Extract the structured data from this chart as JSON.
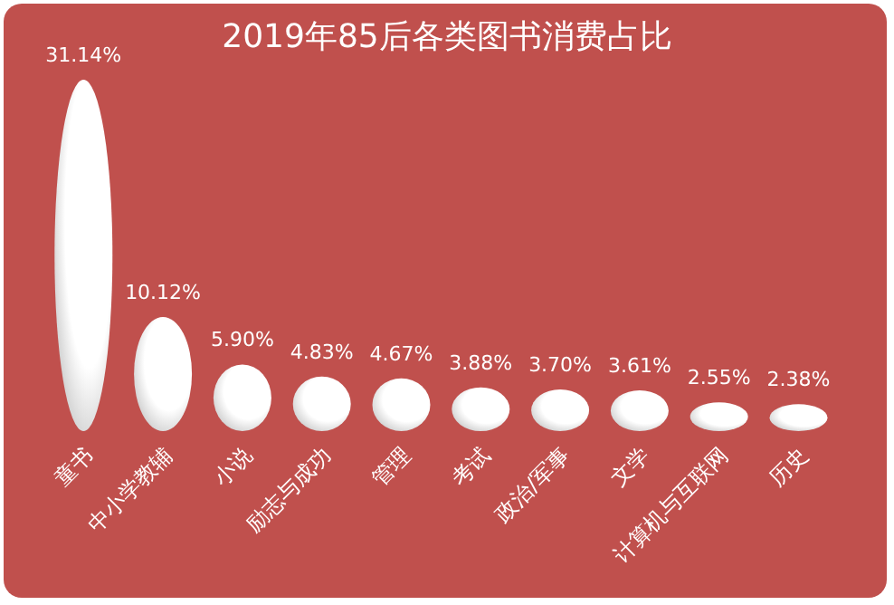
{
  "chart_data": {
    "type": "bar",
    "title": "2019年85后各类图书消费占比",
    "categories": [
      "童书",
      "中小学教辅",
      "小说",
      "励志与成功",
      "管理",
      "考试",
      "政治/军事",
      "文学",
      "计算机与互联网",
      "历史"
    ],
    "values": [
      31.14,
      10.12,
      5.9,
      4.83,
      4.67,
      3.88,
      3.7,
      3.61,
      2.55,
      2.38
    ],
    "value_labels": [
      "31.14%",
      "10.12%",
      "5.90%",
      "4.83%",
      "4.67%",
      "3.88%",
      "3.70%",
      "3.61%",
      "2.55%",
      "2.38%"
    ],
    "color": "#ffffff",
    "data_labels": true,
    "grid": false
  }
}
